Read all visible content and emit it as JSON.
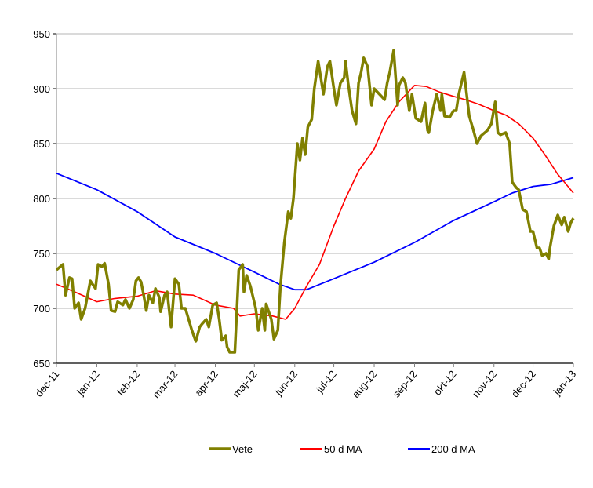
{
  "chart_data": {
    "type": "line",
    "title": "",
    "xlabel": "",
    "ylabel": "",
    "ylim": [
      650,
      950
    ],
    "yticks": [
      650,
      700,
      750,
      800,
      850,
      900,
      950
    ],
    "xlim": [
      "2011-12-01",
      "2013-01-01"
    ],
    "xticks": [
      {
        "date": "2011-12-01",
        "label": "dec-11"
      },
      {
        "date": "2012-01-01",
        "label": "jan-12"
      },
      {
        "date": "2012-02-01",
        "label": "feb-12"
      },
      {
        "date": "2012-03-01",
        "label": "mar-12"
      },
      {
        "date": "2012-04-01",
        "label": "apr-12"
      },
      {
        "date": "2012-05-01",
        "label": "maj-12"
      },
      {
        "date": "2012-06-01",
        "label": "jun-12"
      },
      {
        "date": "2012-07-01",
        "label": "jul-12"
      },
      {
        "date": "2012-08-01",
        "label": "aug-12"
      },
      {
        "date": "2012-09-01",
        "label": "sep-12"
      },
      {
        "date": "2012-10-01",
        "label": "okt-12"
      },
      {
        "date": "2012-11-01",
        "label": "nov-12"
      },
      {
        "date": "2012-12-01",
        "label": "dec-12"
      },
      {
        "date": "2013-01-01",
        "label": "jan-13"
      }
    ],
    "grid": "horizontal",
    "legend_position": "bottom",
    "series": [
      {
        "name": "Vete",
        "color": "#808000",
        "points": [
          [
            "2011-12-01",
            735
          ],
          [
            "2011-12-06",
            740
          ],
          [
            "2011-12-08",
            712
          ],
          [
            "2011-12-11",
            728
          ],
          [
            "2011-12-13",
            727
          ],
          [
            "2011-12-15",
            700
          ],
          [
            "2011-12-18",
            705
          ],
          [
            "2011-12-20",
            690
          ],
          [
            "2011-12-23",
            700
          ],
          [
            "2011-12-27",
            725
          ],
          [
            "2011-12-31",
            718
          ],
          [
            "2012-01-02",
            740
          ],
          [
            "2012-01-05",
            738
          ],
          [
            "2012-01-07",
            741
          ],
          [
            "2012-01-10",
            722
          ],
          [
            "2012-01-12",
            698
          ],
          [
            "2012-01-15",
            697
          ],
          [
            "2012-01-17",
            706
          ],
          [
            "2012-01-21",
            703
          ],
          [
            "2012-01-23",
            708
          ],
          [
            "2012-01-26",
            700
          ],
          [
            "2012-01-29",
            708
          ],
          [
            "2012-01-31",
            725
          ],
          [
            "2012-02-02",
            728
          ],
          [
            "2012-02-04",
            724
          ],
          [
            "2012-02-06",
            712
          ],
          [
            "2012-02-08",
            698
          ],
          [
            "2012-02-10",
            712
          ],
          [
            "2012-02-13",
            705
          ],
          [
            "2012-02-15",
            718
          ],
          [
            "2012-02-18",
            710
          ],
          [
            "2012-02-19",
            697
          ],
          [
            "2012-02-22",
            712
          ],
          [
            "2012-02-24",
            715
          ],
          [
            "2012-02-27",
            683
          ],
          [
            "2012-03-01",
            727
          ],
          [
            "2012-03-04",
            722
          ],
          [
            "2012-03-06",
            700
          ],
          [
            "2012-03-09",
            700
          ],
          [
            "2012-03-12",
            688
          ],
          [
            "2012-03-14",
            680
          ],
          [
            "2012-03-17",
            670
          ],
          [
            "2012-03-20",
            683
          ],
          [
            "2012-03-22",
            686
          ],
          [
            "2012-03-25",
            690
          ],
          [
            "2012-03-27",
            683
          ],
          [
            "2012-03-30",
            703
          ],
          [
            "2012-04-02",
            705
          ],
          [
            "2012-04-04",
            690
          ],
          [
            "2012-04-06",
            671
          ],
          [
            "2012-04-09",
            675
          ],
          [
            "2012-04-10",
            665
          ],
          [
            "2012-04-12",
            660
          ],
          [
            "2012-04-16",
            660
          ],
          [
            "2012-04-19",
            735
          ],
          [
            "2012-04-22",
            740
          ],
          [
            "2012-04-23",
            715
          ],
          [
            "2012-04-25",
            730
          ],
          [
            "2012-04-28",
            720
          ],
          [
            "2012-05-02",
            700
          ],
          [
            "2012-05-04",
            680
          ],
          [
            "2012-05-07",
            700
          ],
          [
            "2012-05-09",
            680
          ],
          [
            "2012-05-10",
            704
          ],
          [
            "2012-05-14",
            690
          ],
          [
            "2012-05-16",
            672
          ],
          [
            "2012-05-19",
            680
          ],
          [
            "2012-05-21",
            720
          ],
          [
            "2012-05-24",
            760
          ],
          [
            "2012-05-27",
            788
          ],
          [
            "2012-05-29",
            782
          ],
          [
            "2012-05-31",
            800
          ],
          [
            "2012-06-03",
            850
          ],
          [
            "2012-06-05",
            835
          ],
          [
            "2012-06-07",
            855
          ],
          [
            "2012-06-09",
            840
          ],
          [
            "2012-06-11",
            865
          ],
          [
            "2012-06-14",
            872
          ],
          [
            "2012-06-16",
            900
          ],
          [
            "2012-06-19",
            925
          ],
          [
            "2012-06-21",
            910
          ],
          [
            "2012-06-23",
            895
          ],
          [
            "2012-06-26",
            920
          ],
          [
            "2012-06-28",
            925
          ],
          [
            "2012-07-01",
            900
          ],
          [
            "2012-07-03",
            885
          ],
          [
            "2012-07-06",
            905
          ],
          [
            "2012-07-09",
            910
          ],
          [
            "2012-07-10",
            925
          ],
          [
            "2012-07-12",
            905
          ],
          [
            "2012-07-15",
            880
          ],
          [
            "2012-07-18",
            868
          ],
          [
            "2012-07-20",
            905
          ],
          [
            "2012-07-22",
            915
          ],
          [
            "2012-07-24",
            928
          ],
          [
            "2012-07-27",
            920
          ],
          [
            "2012-07-30",
            885
          ],
          [
            "2012-08-01",
            900
          ],
          [
            "2012-08-05",
            895
          ],
          [
            "2012-08-09",
            890
          ],
          [
            "2012-08-11",
            905
          ],
          [
            "2012-08-13",
            915
          ],
          [
            "2012-08-16",
            935
          ],
          [
            "2012-08-19",
            885
          ],
          [
            "2012-08-20",
            903
          ],
          [
            "2012-08-23",
            910
          ],
          [
            "2012-08-25",
            905
          ],
          [
            "2012-08-28",
            880
          ],
          [
            "2012-08-30",
            895
          ],
          [
            "2012-09-02",
            873
          ],
          [
            "2012-09-06",
            870
          ],
          [
            "2012-09-09",
            887
          ],
          [
            "2012-09-11",
            862
          ],
          [
            "2012-09-12",
            860
          ],
          [
            "2012-09-15",
            880
          ],
          [
            "2012-09-18",
            895
          ],
          [
            "2012-09-21",
            880
          ],
          [
            "2012-09-22",
            895
          ],
          [
            "2012-09-24",
            875
          ],
          [
            "2012-09-28",
            874
          ],
          [
            "2012-10-01",
            880
          ],
          [
            "2012-10-03",
            880
          ],
          [
            "2012-10-05",
            895
          ],
          [
            "2012-10-09",
            915
          ],
          [
            "2012-10-13",
            875
          ],
          [
            "2012-10-16",
            863
          ],
          [
            "2012-10-19",
            850
          ],
          [
            "2012-10-22",
            857
          ],
          [
            "2012-10-27",
            862
          ],
          [
            "2012-10-30",
            868
          ],
          [
            "2012-11-02",
            888
          ],
          [
            "2012-11-04",
            860
          ],
          [
            "2012-11-06",
            858
          ],
          [
            "2012-11-10",
            860
          ],
          [
            "2012-11-13",
            850
          ],
          [
            "2012-11-15",
            815
          ],
          [
            "2012-11-18",
            810
          ],
          [
            "2012-11-20",
            808
          ],
          [
            "2012-11-23",
            790
          ],
          [
            "2012-11-26",
            788
          ],
          [
            "2012-11-29",
            770
          ],
          [
            "2012-12-01",
            770
          ],
          [
            "2012-12-04",
            755
          ],
          [
            "2012-12-06",
            755
          ],
          [
            "2012-12-08",
            748
          ],
          [
            "2012-12-11",
            750
          ],
          [
            "2012-12-13",
            745
          ],
          [
            "2012-12-14",
            755
          ],
          [
            "2012-12-17",
            775
          ],
          [
            "2012-12-20",
            785
          ],
          [
            "2012-12-23",
            776
          ],
          [
            "2012-12-25",
            783
          ],
          [
            "2012-12-28",
            770
          ],
          [
            "2012-12-30",
            778
          ],
          [
            "2013-01-01",
            782
          ]
        ]
      },
      {
        "name": "50 d MA",
        "color": "#ff0000",
        "points": [
          [
            "2011-12-01",
            722
          ],
          [
            "2011-12-15",
            715
          ],
          [
            "2012-01-01",
            706
          ],
          [
            "2012-01-15",
            709
          ],
          [
            "2012-02-01",
            711
          ],
          [
            "2012-02-15",
            716
          ],
          [
            "2012-03-01",
            713
          ],
          [
            "2012-03-15",
            712
          ],
          [
            "2012-04-01",
            703
          ],
          [
            "2012-04-15",
            700
          ],
          [
            "2012-04-20",
            693
          ],
          [
            "2012-05-01",
            695
          ],
          [
            "2012-05-15",
            693
          ],
          [
            "2012-05-25",
            690
          ],
          [
            "2012-06-01",
            700
          ],
          [
            "2012-06-10",
            720
          ],
          [
            "2012-06-20",
            740
          ],
          [
            "2012-07-01",
            775
          ],
          [
            "2012-07-10",
            800
          ],
          [
            "2012-07-20",
            825
          ],
          [
            "2012-08-01",
            845
          ],
          [
            "2012-08-10",
            870
          ],
          [
            "2012-08-20",
            888
          ],
          [
            "2012-09-01",
            903
          ],
          [
            "2012-09-10",
            902
          ],
          [
            "2012-09-20",
            897
          ],
          [
            "2012-10-01",
            893
          ],
          [
            "2012-10-10",
            890
          ],
          [
            "2012-10-20",
            886
          ],
          [
            "2012-11-01",
            880
          ],
          [
            "2012-11-10",
            876
          ],
          [
            "2012-11-20",
            868
          ],
          [
            "2012-12-01",
            855
          ],
          [
            "2012-12-10",
            840
          ],
          [
            "2012-12-20",
            822
          ],
          [
            "2012-12-25",
            815
          ],
          [
            "2013-01-01",
            805
          ]
        ]
      },
      {
        "name": "200 d MA",
        "color": "#0000ff",
        "points": [
          [
            "2011-12-01",
            823
          ],
          [
            "2012-01-01",
            808
          ],
          [
            "2012-02-01",
            788
          ],
          [
            "2012-03-01",
            765
          ],
          [
            "2012-04-01",
            750
          ],
          [
            "2012-05-01",
            733
          ],
          [
            "2012-05-20",
            722
          ],
          [
            "2012-06-01",
            717
          ],
          [
            "2012-06-10",
            717
          ],
          [
            "2012-07-01",
            727
          ],
          [
            "2012-08-01",
            742
          ],
          [
            "2012-09-01",
            760
          ],
          [
            "2012-10-01",
            780
          ],
          [
            "2012-11-01",
            797
          ],
          [
            "2012-11-15",
            805
          ],
          [
            "2012-12-01",
            811
          ],
          [
            "2012-12-15",
            813
          ],
          [
            "2013-01-01",
            819
          ]
        ]
      }
    ]
  }
}
